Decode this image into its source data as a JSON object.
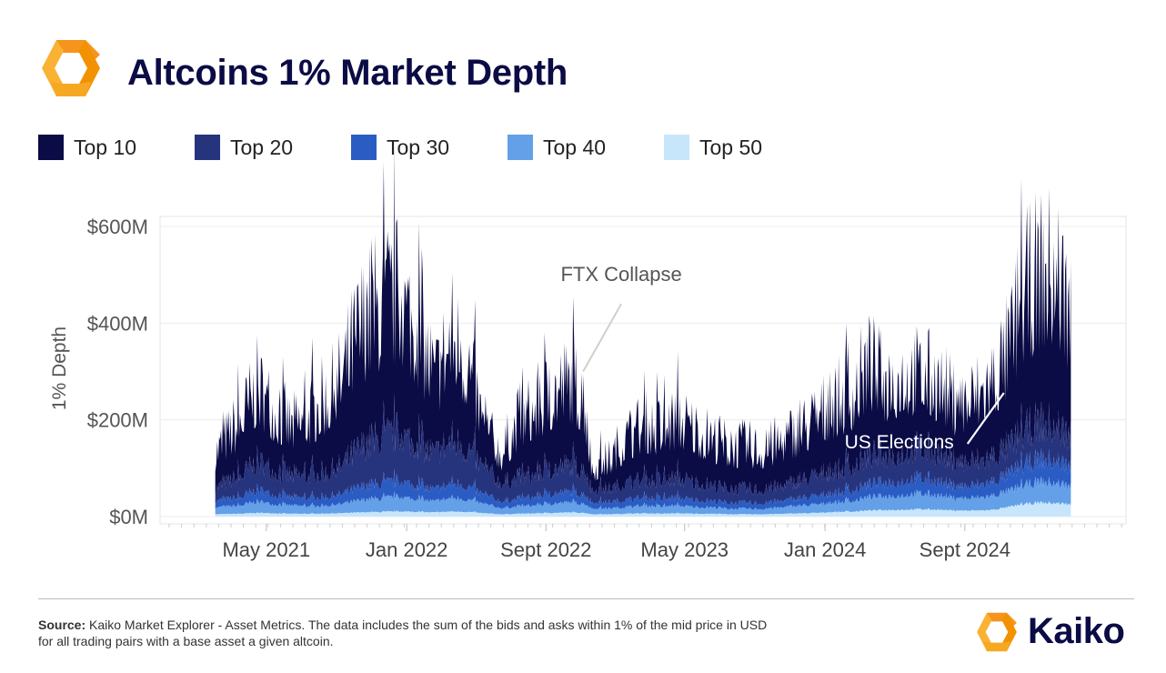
{
  "header": {
    "title": "Altcoins 1% Market Depth"
  },
  "colors": {
    "top_10": "#0b0b45",
    "top_20": "#26337d",
    "top_30": "#2a5cc4",
    "top_40": "#63a0e8",
    "top_50": "#c8e6fb",
    "accent_orange": "#f7941d"
  },
  "footer": {
    "source_label": "Source:",
    "source_text": "Kaiko Market Explorer - Asset Metrics. The data includes the sum of the bids and asks within 1% of the mid price in USD",
    "source_text_2": "for all trading pairs with a base asset  a given altcoin.",
    "brand": "Kaiko"
  },
  "chart_data": {
    "type": "area",
    "stacked": true,
    "ylabel": "1% Depth",
    "xlabel": "",
    "ylim": [
      0,
      600
    ],
    "y_unit": "$M",
    "y_ticks": [
      0,
      200,
      400,
      600
    ],
    "y_tick_labels": [
      "$0M",
      "$200M",
      "$400M",
      "$600M"
    ],
    "x_tick_labels": [
      "May 2021",
      "Jan 2022",
      "Sept 2022",
      "May 2023",
      "Jan 2024",
      "Sept 2024"
    ],
    "x_ticks": [
      "2021-05-01",
      "2022-01-01",
      "2022-09-01",
      "2023-05-01",
      "2024-01-01",
      "2024-09-01"
    ],
    "xlim": [
      "2021-01-15",
      "2025-03-25"
    ],
    "grid": true,
    "legend_position": "top-left",
    "x": [
      "2021-02-01",
      "2021-03-15",
      "2021-04-15",
      "2021-05-15",
      "2021-06-15",
      "2021-07-20",
      "2021-09-01",
      "2021-10-15",
      "2021-11-20",
      "2021-12-20",
      "2022-01-20",
      "2022-02-20",
      "2022-03-20",
      "2022-04-20",
      "2022-05-15",
      "2022-06-15",
      "2022-07-15",
      "2022-08-15",
      "2022-09-15",
      "2022-10-15",
      "2022-11-07",
      "2022-11-20",
      "2022-12-20",
      "2023-01-20",
      "2023-02-20",
      "2023-03-20",
      "2023-04-20",
      "2023-05-20",
      "2023-06-20",
      "2023-07-20",
      "2023-08-20",
      "2023-09-20",
      "2023-10-20",
      "2023-11-20",
      "2023-12-20",
      "2024-01-20",
      "2024-02-20",
      "2024-03-15",
      "2024-04-15",
      "2024-05-15",
      "2024-06-15",
      "2024-07-15",
      "2024-08-15",
      "2024-09-15",
      "2024-10-15",
      "2024-11-15",
      "2024-12-10",
      "2025-01-10",
      "2025-02-10",
      "2025-03-05"
    ],
    "series": [
      {
        "name": "Top 50",
        "values": [
          5,
          6,
          8,
          7,
          6,
          6,
          7,
          9,
          10,
          11,
          10,
          9,
          11,
          10,
          7,
          5,
          6,
          7,
          8,
          9,
          8,
          5,
          5,
          6,
          7,
          6,
          7,
          6,
          6,
          5,
          5,
          5,
          6,
          7,
          8,
          10,
          11,
          13,
          14,
          15,
          16,
          15,
          13,
          13,
          14,
          20,
          26,
          30,
          29,
          26
        ]
      },
      {
        "name": "Top 40",
        "values": [
          15,
          18,
          25,
          20,
          18,
          17,
          19,
          27,
          30,
          32,
          28,
          24,
          31,
          27,
          20,
          14,
          16,
          18,
          21,
          22,
          20,
          13,
          13,
          15,
          17,
          16,
          17,
          15,
          14,
          12,
          12,
          12,
          15,
          17,
          19,
          21,
          24,
          29,
          30,
          32,
          35,
          32,
          27,
          28,
          31,
          35,
          40,
          46,
          44,
          40
        ]
      },
      {
        "name": "Top 30",
        "values": [
          15,
          18,
          27,
          21,
          19,
          18,
          21,
          30,
          33,
          35,
          31,
          26,
          34,
          29,
          21,
          15,
          17,
          20,
          23,
          24,
          21,
          14,
          14,
          16,
          18,
          17,
          18,
          16,
          14,
          13,
          13,
          13,
          15,
          17,
          19,
          21,
          24,
          29,
          31,
          32,
          35,
          32,
          27,
          28,
          31,
          38,
          45,
          51,
          49,
          45
        ]
      },
      {
        "name": "Top 20",
        "values": [
          30,
          48,
          65,
          55,
          50,
          52,
          60,
          92,
          105,
          110,
          95,
          82,
          100,
          85,
          60,
          42,
          48,
          52,
          58,
          62,
          55,
          30,
          30,
          38,
          42,
          40,
          45,
          40,
          35,
          32,
          32,
          30,
          35,
          40,
          48,
          50,
          55,
          65,
          62,
          66,
          70,
          66,
          56,
          55,
          58,
          62,
          74,
          83,
          78,
          70
        ]
      },
      {
        "name": "Top 10",
        "values": [
          85,
          130,
          175,
          145,
          115,
          150,
          190,
          290,
          320,
          320,
          270,
          180,
          250,
          200,
          100,
          70,
          135,
          155,
          185,
          195,
          170,
          50,
          70,
          110,
          130,
          120,
          140,
          125,
          110,
          100,
          100,
          95,
          110,
          120,
          140,
          160,
          175,
          215,
          170,
          185,
          170,
          165,
          140,
          150,
          175,
          225,
          315,
          345,
          360,
          290
        ]
      }
    ],
    "annotations": [
      {
        "text": "FTX Collapse",
        "x": "2022-11-08"
      },
      {
        "text": "US Elections",
        "x": "2024-11-05"
      }
    ]
  }
}
